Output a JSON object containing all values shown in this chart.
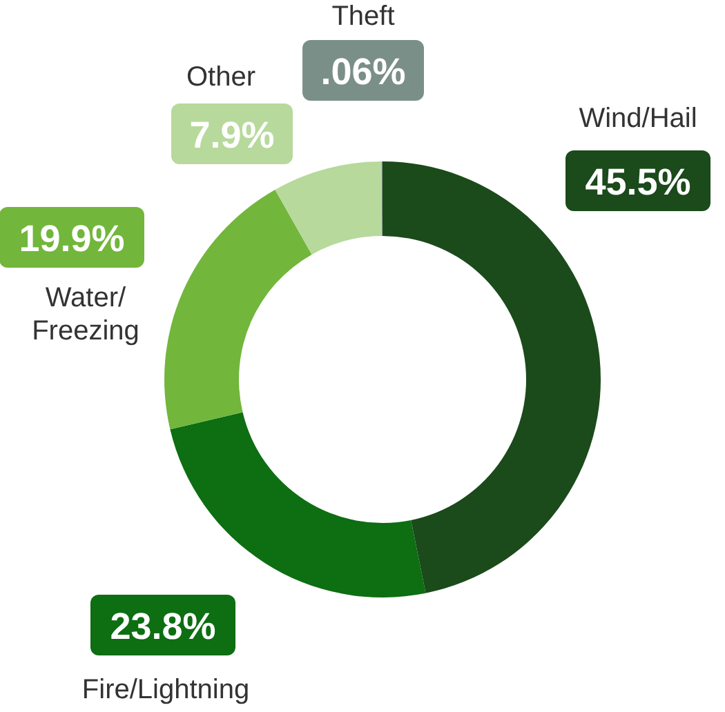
{
  "chart_data": {
    "type": "donut",
    "categories": [
      "Wind/Hail",
      "Fire/Lightning",
      "Water/Freezing",
      "Other",
      "Theft"
    ],
    "values": [
      45.5,
      23.8,
      19.9,
      7.9,
      0.06
    ],
    "value_labels": [
      "45.5%",
      "23.8%",
      "19.9%",
      "7.9%",
      ".06%"
    ],
    "colors": [
      "#1b4a1b",
      "#0d6e12",
      "#72b63c",
      "#b7d99c",
      "#7b8f89"
    ],
    "legend": false
  }
}
